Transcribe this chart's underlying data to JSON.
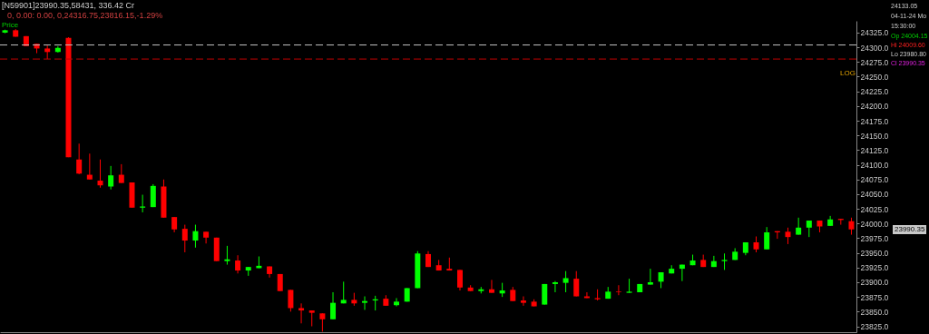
{
  "chart_data": {
    "type": "candlestick",
    "categories": [
      null,
      null,
      null,
      null,
      null,
      null,
      null,
      null,
      null,
      null,
      null,
      null,
      null,
      null,
      null,
      null,
      null,
      null,
      null,
      null,
      null,
      null,
      null,
      null,
      null,
      null,
      null,
      null,
      null,
      null,
      null,
      null,
      null,
      null,
      null,
      null,
      null,
      null,
      null,
      null,
      null,
      null,
      null,
      null,
      null,
      null,
      null,
      null,
      null,
      null,
      null,
      null,
      null,
      null,
      null,
      null,
      null,
      null,
      null,
      null,
      null,
      null,
      null,
      null,
      null,
      null,
      null,
      null,
      null,
      null,
      null,
      null,
      null,
      null,
      null,
      null,
      null,
      null,
      null,
      null,
      null
    ],
    "ohlc": [
      [
        24325,
        24330,
        24324,
        24329
      ],
      [
        24329,
        24331,
        24318,
        24318
      ],
      [
        24319,
        24319,
        24302,
        24302
      ],
      [
        24306,
        24306,
        24290,
        24298
      ],
      [
        24298,
        24303,
        24280,
        24292
      ],
      [
        24292,
        24302,
        24291,
        24299
      ],
      [
        24316,
        24317,
        24113,
        24113
      ],
      [
        24109,
        24136,
        24084,
        24085
      ],
      [
        24083,
        24119,
        24075,
        24075
      ],
      [
        24073,
        24109,
        24061,
        24065
      ],
      [
        24063,
        24098,
        24058,
        24082
      ],
      [
        24083,
        24101,
        24069,
        24069
      ],
      [
        24070,
        24070,
        24027,
        24027
      ],
      [
        24027,
        24049,
        24019,
        24029
      ],
      [
        24028,
        24067,
        24028,
        24064
      ],
      [
        24063,
        24075,
        24010,
        24010
      ],
      [
        24011,
        24011,
        23985,
        23990
      ],
      [
        23991,
        23998,
        23951,
        23971
      ],
      [
        23971,
        23998,
        23959,
        23987
      ],
      [
        23986,
        23986,
        23966,
        23976
      ],
      [
        23976,
        23976,
        23936,
        23936
      ],
      [
        23936,
        23962,
        23930,
        23939
      ],
      [
        23937,
        23946,
        23915,
        23920
      ],
      [
        23920,
        23926,
        23911,
        23926
      ],
      [
        23924,
        23944,
        23924,
        23928
      ],
      [
        23927,
        23927,
        23908,
        23914
      ],
      [
        23914,
        23914,
        23885,
        23885
      ],
      [
        23887,
        23887,
        23850,
        23856
      ],
      [
        23856,
        23864,
        23830,
        23852
      ],
      [
        23852,
        23852,
        23825,
        23848
      ],
      [
        23847,
        23847,
        23816,
        23837
      ],
      [
        23837,
        23883,
        23837,
        23865
      ],
      [
        23864,
        23901,
        23864,
        23870
      ],
      [
        23870,
        23882,
        23860,
        23864
      ],
      [
        23865,
        23876,
        23853,
        23868
      ],
      [
        23869,
        23877,
        23852,
        23871
      ],
      [
        23872,
        23878,
        23860,
        23860
      ],
      [
        23861,
        23873,
        23859,
        23867
      ],
      [
        23867,
        23890,
        23867,
        23890
      ],
      [
        23890,
        23953,
        23890,
        23949
      ],
      [
        23948,
        23953,
        23926,
        23926
      ],
      [
        23929,
        23938,
        23920,
        23920
      ],
      [
        23923,
        23942,
        23920,
        23920
      ],
      [
        23921,
        23921,
        23886,
        23891
      ],
      [
        23891,
        23895,
        23885,
        23885
      ],
      [
        23885,
        23892,
        23881,
        23888
      ],
      [
        23888,
        23904,
        23882,
        23882
      ],
      [
        23881,
        23899,
        23875,
        23886
      ],
      [
        23887,
        23892,
        23868,
        23868
      ],
      [
        23869,
        23876,
        23860,
        23865
      ],
      [
        23867,
        23871,
        23859,
        23859
      ],
      [
        23862,
        23897,
        23862,
        23897
      ],
      [
        23897,
        23902,
        23883,
        23900
      ],
      [
        23899,
        23919,
        23883,
        23907
      ],
      [
        23906,
        23919,
        23876,
        23876
      ],
      [
        23876,
        23883,
        23873,
        23873
      ],
      [
        23873,
        23888,
        23869,
        23871
      ],
      [
        23872,
        23892,
        23872,
        23884
      ],
      [
        23884,
        23895,
        23878,
        23883
      ],
      [
        23882,
        23906,
        23882,
        23884
      ],
      [
        23883,
        23897,
        23883,
        23897
      ],
      [
        23896,
        23923,
        23896,
        23900
      ],
      [
        23901,
        23917,
        23890,
        23917
      ],
      [
        23915,
        23929,
        23915,
        23923
      ],
      [
        23923,
        23930,
        23902,
        23930
      ],
      [
        23929,
        23947,
        23929,
        23937
      ],
      [
        23938,
        23947,
        23926,
        23926
      ],
      [
        23926,
        23945,
        23926,
        23936
      ],
      [
        23936,
        23949,
        23921,
        23938
      ],
      [
        23938,
        23958,
        23938,
        23952
      ],
      [
        23950,
        23968,
        23946,
        23968
      ],
      [
        23968,
        23978,
        23951,
        23956
      ],
      [
        23956,
        23994,
        23956,
        23985
      ],
      [
        23987,
        23987,
        23974,
        23985
      ],
      [
        23986,
        23993,
        23965,
        23977
      ],
      [
        23981,
        24010,
        23981,
        23993
      ],
      [
        23993,
        24005,
        23977,
        24005
      ],
      [
        24005,
        24005,
        23985,
        23995
      ],
      [
        23996,
        24013,
        23996,
        24007
      ],
      [
        24008,
        24008,
        23998,
        24006
      ],
      [
        24004,
        24010,
        23981,
        23990
      ]
    ],
    "colors": [
      "#00ff00",
      "#ff0000",
      "#ff0000",
      "#ff0000",
      "#ff0000",
      "#00ff00",
      "#ff0000",
      "#ff0000",
      "#ff0000",
      "#ff0000",
      "#00ff00",
      "#ff0000",
      "#ff0000",
      "#00ff00",
      "#00ff00",
      "#ff0000",
      "#ff0000",
      "#ff0000",
      "#00ff00",
      "#ff0000",
      "#ff0000",
      "#00ff00",
      "#ff0000",
      "#00ff00",
      "#00ff00",
      "#ff0000",
      "#ff0000",
      "#ff0000",
      "#ff0000",
      "#ff0000",
      "#ff0000",
      "#00ff00",
      "#00ff00",
      "#ff0000",
      "#00ff00",
      "#00ff00",
      "#ff0000",
      "#00ff00",
      "#00ff00",
      "#00ff00",
      "#ff0000",
      "#ff0000",
      "#ff0000",
      "#ff0000",
      "#ff0000",
      "#00ff00",
      "#ff0000",
      "#00ff00",
      "#ff0000",
      "#ff0000",
      "#ff0000",
      "#00ff00",
      "#00ff00",
      "#00ff00",
      "#ff0000",
      "#ff0000",
      "#ff0000",
      "#00ff00",
      "#ff0000",
      "#00ff00",
      "#00ff00",
      "#00ff00",
      "#00ff00",
      "#00ff00",
      "#00ff00",
      "#00ff00",
      "#ff0000",
      "#00ff00",
      "#00ff00",
      "#00ff00",
      "#00ff00",
      "#ff0000",
      "#00ff00",
      "#ff0000",
      "#ff0000",
      "#00ff00",
      "#00ff00",
      "#ff0000",
      "#00ff00",
      "#ff0000",
      "#ff0000"
    ],
    "ylim": [
      23815,
      24345
    ],
    "yticks": [
      {
        "value": 23825,
        "label": "23825.0"
      },
      {
        "value": 23850,
        "label": "23850.0"
      },
      {
        "value": 23875,
        "label": "23875.0"
      },
      {
        "value": 23900,
        "label": "23900.0"
      },
      {
        "value": 23925,
        "label": "23925.0"
      },
      {
        "value": 23950,
        "label": "23950.0"
      },
      {
        "value": 23975,
        "label": "23975.0"
      },
      {
        "value": 24000,
        "label": "24000.0"
      },
      {
        "value": 24025,
        "label": "24025.0"
      },
      {
        "value": 24050,
        "label": "24050.0"
      },
      {
        "value": 24075,
        "label": "24075.0"
      },
      {
        "value": 24100,
        "label": "24100.0"
      },
      {
        "value": 24125,
        "label": "24125.0"
      },
      {
        "value": 24150,
        "label": "24150.0"
      },
      {
        "value": 24175,
        "label": "24175.0"
      },
      {
        "value": 24200,
        "label": "24200.0"
      },
      {
        "value": 24225,
        "label": "24225.0"
      },
      {
        "value": 24250,
        "label": "24250.0"
      },
      {
        "value": 24275,
        "label": "24275.0"
      },
      {
        "value": 24300,
        "label": "24300.0"
      },
      {
        "value": 24325,
        "label": "24325.0"
      }
    ],
    "tick_labels": "y",
    "grid": false,
    "ref_lines": [
      {
        "axis": "y",
        "value": 24304,
        "color": "#c0c0c0",
        "line_style": "dashed"
      },
      {
        "axis": "y",
        "value": 24280,
        "color": "#c00000",
        "line_style": "dashed"
      }
    ],
    "annotations": [
      "[N59901]23990.35,58431, 336.42 Cr",
      "0, 0.00: 0.00, 0,24316.75,23816.15,-1.29%",
      "Price",
      "LOG",
      "24133.05",
      "04-11-24 Mo",
      "15:30:00",
      "Op 24004.15",
      "Hi 24009.60",
      "Lo 23980.80",
      "Cl 23990.35",
      "23990.35"
    ]
  }
}
